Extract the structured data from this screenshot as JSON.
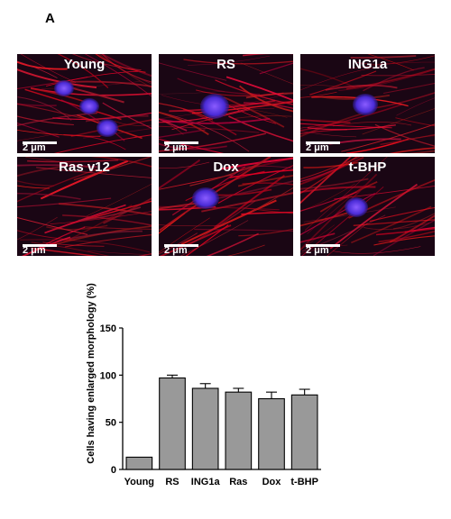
{
  "figure": {
    "panel_letter": "A",
    "scale_label": "2 μm",
    "images": [
      {
        "label": "Young",
        "nuclei": 3
      },
      {
        "label": "RS",
        "nuclei": 1
      },
      {
        "label": "ING1a",
        "nuclei": 1
      },
      {
        "label": "Ras v12",
        "nuclei": 0
      },
      {
        "label": "Dox",
        "nuclei": 1
      },
      {
        "label": "t-BHP",
        "nuclei": 1
      }
    ]
  },
  "chart_data": {
    "type": "bar",
    "categories": [
      "Young",
      "RS",
      "ING1a",
      "Ras",
      "Dox",
      "t-BHP"
    ],
    "values": [
      13,
      97,
      86,
      82,
      75,
      79
    ],
    "errors": [
      0,
      3,
      5,
      4,
      7,
      6
    ],
    "title": "",
    "xlabel": "",
    "ylabel": "Cells having enlarged morphology (%)",
    "ylim": [
      0,
      150
    ],
    "yticks": [
      0,
      50,
      100,
      150
    ],
    "bar_color": "#999999",
    "grid": false
  }
}
